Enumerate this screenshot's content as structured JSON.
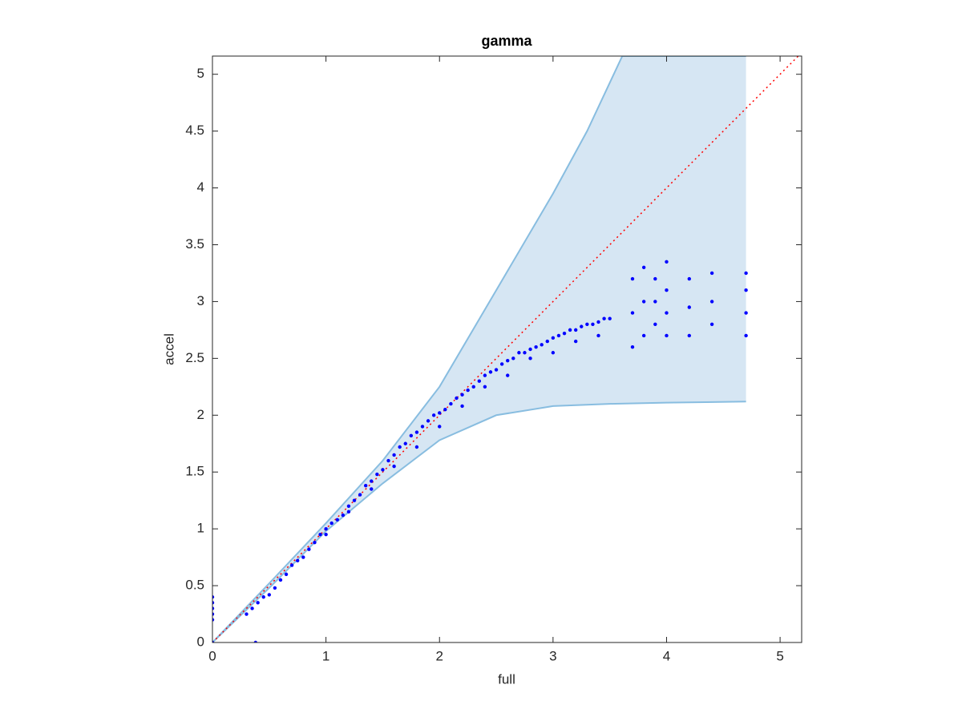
{
  "chart_data": {
    "type": "scatter",
    "title": "gamma",
    "x_label": "full",
    "y_label": "accel",
    "xlim": [
      0,
      5.19
    ],
    "ylim": [
      0,
      5.16
    ],
    "xticks": [
      0,
      1,
      2,
      3,
      4,
      5
    ],
    "yticks": [
      0,
      0.5,
      1,
      1.5,
      2,
      2.5,
      3,
      3.5,
      4,
      4.5,
      5
    ],
    "band": {
      "color": "#d6e6f3",
      "edge_color": "#88bde0",
      "upper_x": [
        0,
        0.5,
        1,
        1.5,
        2,
        2.5,
        3,
        3.3,
        3.61,
        4.7
      ],
      "upper_y": [
        0,
        0.52,
        1.05,
        1.6,
        2.25,
        3.1,
        3.95,
        4.5,
        5.16,
        5.16
      ],
      "lower_x": [
        0,
        0.5,
        1,
        1.5,
        2,
        2.5,
        3,
        3.5,
        4,
        4.7
      ],
      "lower_y": [
        0,
        0.48,
        0.98,
        1.4,
        1.78,
        2.0,
        2.08,
        2.1,
        2.11,
        2.12
      ]
    },
    "reference_line": {
      "color": "#ff0000",
      "x": [
        0,
        5.16
      ],
      "y": [
        0,
        5.16
      ]
    },
    "series": [
      {
        "color": "#0000ff",
        "x": [
          0,
          0,
          0,
          0,
          0,
          0,
          0.35,
          0.3,
          0.4,
          0.45,
          0.5,
          0.55,
          0.6,
          0.65,
          0.7,
          0.75,
          0.8,
          0.85,
          0.9,
          0.95,
          1.0,
          1.05,
          1.1,
          1.15,
          1.2,
          1.25,
          1.3,
          1.35,
          1.4,
          1.45,
          1.5,
          1.55,
          1.6,
          1.65,
          1.7,
          1.75,
          1.8,
          1.85,
          1.9,
          1.95,
          2.0,
          2.05,
          2.1,
          2.15,
          2.2,
          2.25,
          2.3,
          2.35,
          2.4,
          2.45,
          2.5,
          2.55,
          2.6,
          2.65,
          2.7,
          2.75,
          2.8,
          2.85,
          2.9,
          2.95,
          3.0,
          3.05,
          3.1,
          3.15,
          3.2,
          3.25,
          3.3,
          3.35,
          3.4,
          3.45,
          3.5,
          3.7,
          3.7,
          3.7,
          3.8,
          3.8,
          3.8,
          3.9,
          3.9,
          3.9,
          4.0,
          4.0,
          4.0,
          4.0,
          4.2,
          4.2,
          4.2,
          4.4,
          4.4,
          4.4,
          4.7,
          4.7,
          4.7,
          4.7,
          0.38,
          1.0,
          1.2,
          1.4,
          1.6,
          1.8,
          2.0,
          2.2,
          2.4,
          2.6,
          2.8,
          3.0,
          3.2,
          3.4
        ],
        "values": [
          0.2,
          0.25,
          0.3,
          0.35,
          0.4,
          0.0,
          0.3,
          0.25,
          0.35,
          0.4,
          0.42,
          0.48,
          0.55,
          0.6,
          0.68,
          0.72,
          0.75,
          0.82,
          0.88,
          0.95,
          1.0,
          1.05,
          1.08,
          1.12,
          1.2,
          1.25,
          1.3,
          1.38,
          1.42,
          1.48,
          1.52,
          1.6,
          1.65,
          1.72,
          1.75,
          1.82,
          1.85,
          1.9,
          1.95,
          2.0,
          2.02,
          2.05,
          2.1,
          2.15,
          2.18,
          2.22,
          2.25,
          2.3,
          2.35,
          2.38,
          2.4,
          2.45,
          2.48,
          2.5,
          2.55,
          2.55,
          2.58,
          2.6,
          2.62,
          2.65,
          2.68,
          2.7,
          2.72,
          2.75,
          2.75,
          2.78,
          2.8,
          2.8,
          2.82,
          2.85,
          2.85,
          2.6,
          2.9,
          3.2,
          2.7,
          3.0,
          3.3,
          2.8,
          3.0,
          3.2,
          2.7,
          2.9,
          3.1,
          3.35,
          2.7,
          2.95,
          3.2,
          2.8,
          3.0,
          3.25,
          2.7,
          2.9,
          3.1,
          3.25,
          0.0,
          0.95,
          1.15,
          1.35,
          1.55,
          1.72,
          1.9,
          2.08,
          2.25,
          2.35,
          2.5,
          2.55,
          2.65,
          2.7
        ]
      }
    ]
  }
}
